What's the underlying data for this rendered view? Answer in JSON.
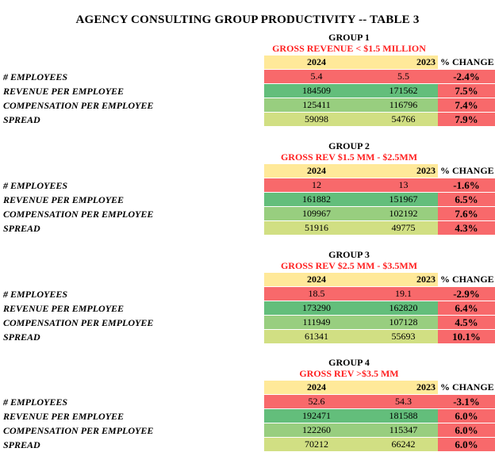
{
  "title": "AGENCY CONSULTING GROUP PRODUCTIVITY -- TABLE 3",
  "colors": {
    "red": "#f8696b",
    "green_dark": "#63be7b",
    "green_mid": "#98ce7f",
    "green_light": "#d1df83",
    "header_yellow": "#ffe999",
    "subtitle_red": "#ff1f1f"
  },
  "groups": [
    {
      "name": "GROUP 1",
      "subtitle": "GROSS REVENUE < $1.5 MILLION",
      "col_2024": "2024",
      "col_2023": "2023",
      "col_change": "% CHANGE",
      "rows": [
        {
          "label": "# EMPLOYEES",
          "v2024": "5.4",
          "v2023": "5.5",
          "change": "-2.4%"
        },
        {
          "label": "REVENUE PER EMPLOYEE",
          "v2024": "184509",
          "v2023": "171562",
          "change": "7.5%"
        },
        {
          "label": "COMPENSATION PER EMPLOYEE",
          "v2024": "125411",
          "v2023": "116796",
          "change": "7.4%"
        },
        {
          "label": "SPREAD",
          "v2024": "59098",
          "v2023": "54766",
          "change": "7.9%"
        }
      ]
    },
    {
      "name": "GROUP 2",
      "subtitle": "GROSS REV $1.5 MM - $2.5MM",
      "col_2024": "2024",
      "col_2023": "2023",
      "col_change": "% CHANGE",
      "rows": [
        {
          "label": "# EMPLOYEES",
          "v2024": "12",
          "v2023": "13",
          "change": "-1.6%"
        },
        {
          "label": "REVENUE PER EMPLOYEE",
          "v2024": "161882",
          "v2023": "151967",
          "change": "6.5%"
        },
        {
          "label": "COMPENSATION PER EMPLOYEE",
          "v2024": "109967",
          "v2023": "102192",
          "change": "7.6%"
        },
        {
          "label": "SPREAD",
          "v2024": "51916",
          "v2023": "49775",
          "change": "4.3%"
        }
      ]
    },
    {
      "name": "GROUP 3",
      "subtitle": "GROSS REV $2.5 MM - $3.5MM",
      "col_2024": "2024",
      "col_2023": "2023",
      "col_change": "% CHANGE",
      "rows": [
        {
          "label": "# EMPLOYEES",
          "v2024": "18.5",
          "v2023": "19.1",
          "change": "-2.9%"
        },
        {
          "label": "REVENUE PER EMPLOYEE",
          "v2024": "173290",
          "v2023": "162820",
          "change": "6.4%"
        },
        {
          "label": "COMPENSATION PER EMPLOYEE",
          "v2024": "111949",
          "v2023": "107128",
          "change": "4.5%"
        },
        {
          "label": "SPREAD",
          "v2024": "61341",
          "v2023": "55693",
          "change": "10.1%"
        }
      ]
    },
    {
      "name": "GROUP 4",
      "subtitle": "GROSS REV >$3.5 MM",
      "col_2024": "2024",
      "col_2023": "2023",
      "col_change": "% CHANGE",
      "rows": [
        {
          "label": "# EMPLOYEES",
          "v2024": "52.6",
          "v2023": "54.3",
          "change": "-3.1%"
        },
        {
          "label": "REVENUE PER EMPLOYEE",
          "v2024": "192471",
          "v2023": "181588",
          "change": "6.0%"
        },
        {
          "label": "COMPENSATION PER EMPLOYEE",
          "v2024": "122260",
          "v2023": "115347",
          "change": "6.0%"
        },
        {
          "label": "SPREAD",
          "v2024": "70212",
          "v2023": "66242",
          "change": "6.0%"
        }
      ]
    }
  ]
}
